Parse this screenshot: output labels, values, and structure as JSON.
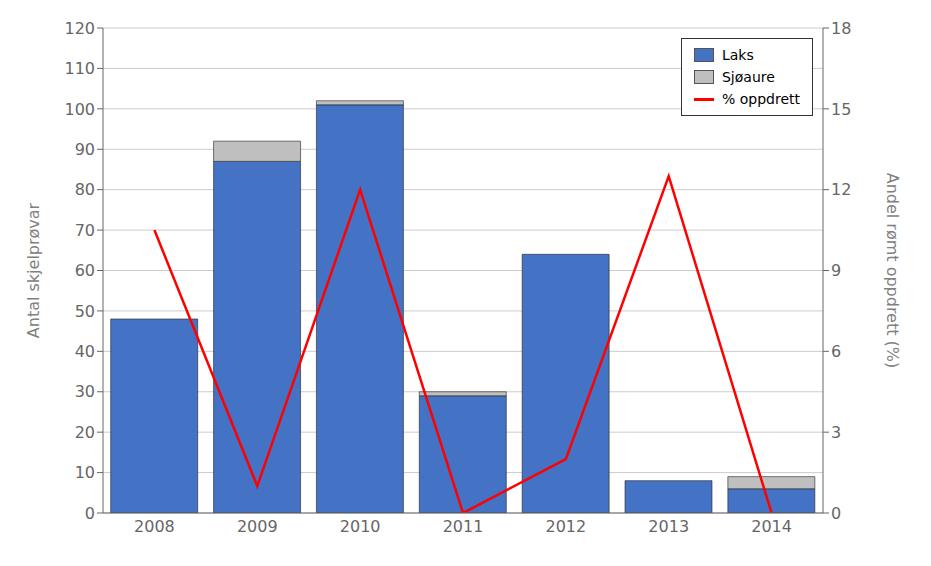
{
  "chart_data": {
    "type": "bar",
    "categories": [
      "2008",
      "2009",
      "2010",
      "2011",
      "2012",
      "2013",
      "2014"
    ],
    "series": [
      {
        "name": "Laks",
        "color": "#4472C4",
        "values": [
          48,
          87,
          101,
          29,
          64,
          8,
          6
        ]
      },
      {
        "name": "Sjøaure",
        "color": "#BFBFBF",
        "values": [
          0,
          5,
          1,
          1,
          0,
          0,
          3
        ]
      },
      {
        "name": "% oppdrett",
        "type": "line",
        "axis": "y2",
        "color": "#FF0000",
        "values": [
          10.5,
          1.0,
          12.0,
          0.0,
          2.0,
          12.5,
          0.0
        ]
      }
    ],
    "stacked": true,
    "ylabel": "Antal skjelprøvar",
    "y2label": "Andel rømt oppdrett (%)",
    "ylim": [
      0,
      120
    ],
    "yticks": [
      0,
      10,
      20,
      30,
      40,
      50,
      60,
      70,
      80,
      90,
      100,
      110,
      120
    ],
    "y2lim": [
      0,
      18
    ],
    "y2ticks": [
      0,
      3,
      6,
      9,
      12,
      15,
      18
    ],
    "grid": true,
    "legend": "upper right"
  }
}
